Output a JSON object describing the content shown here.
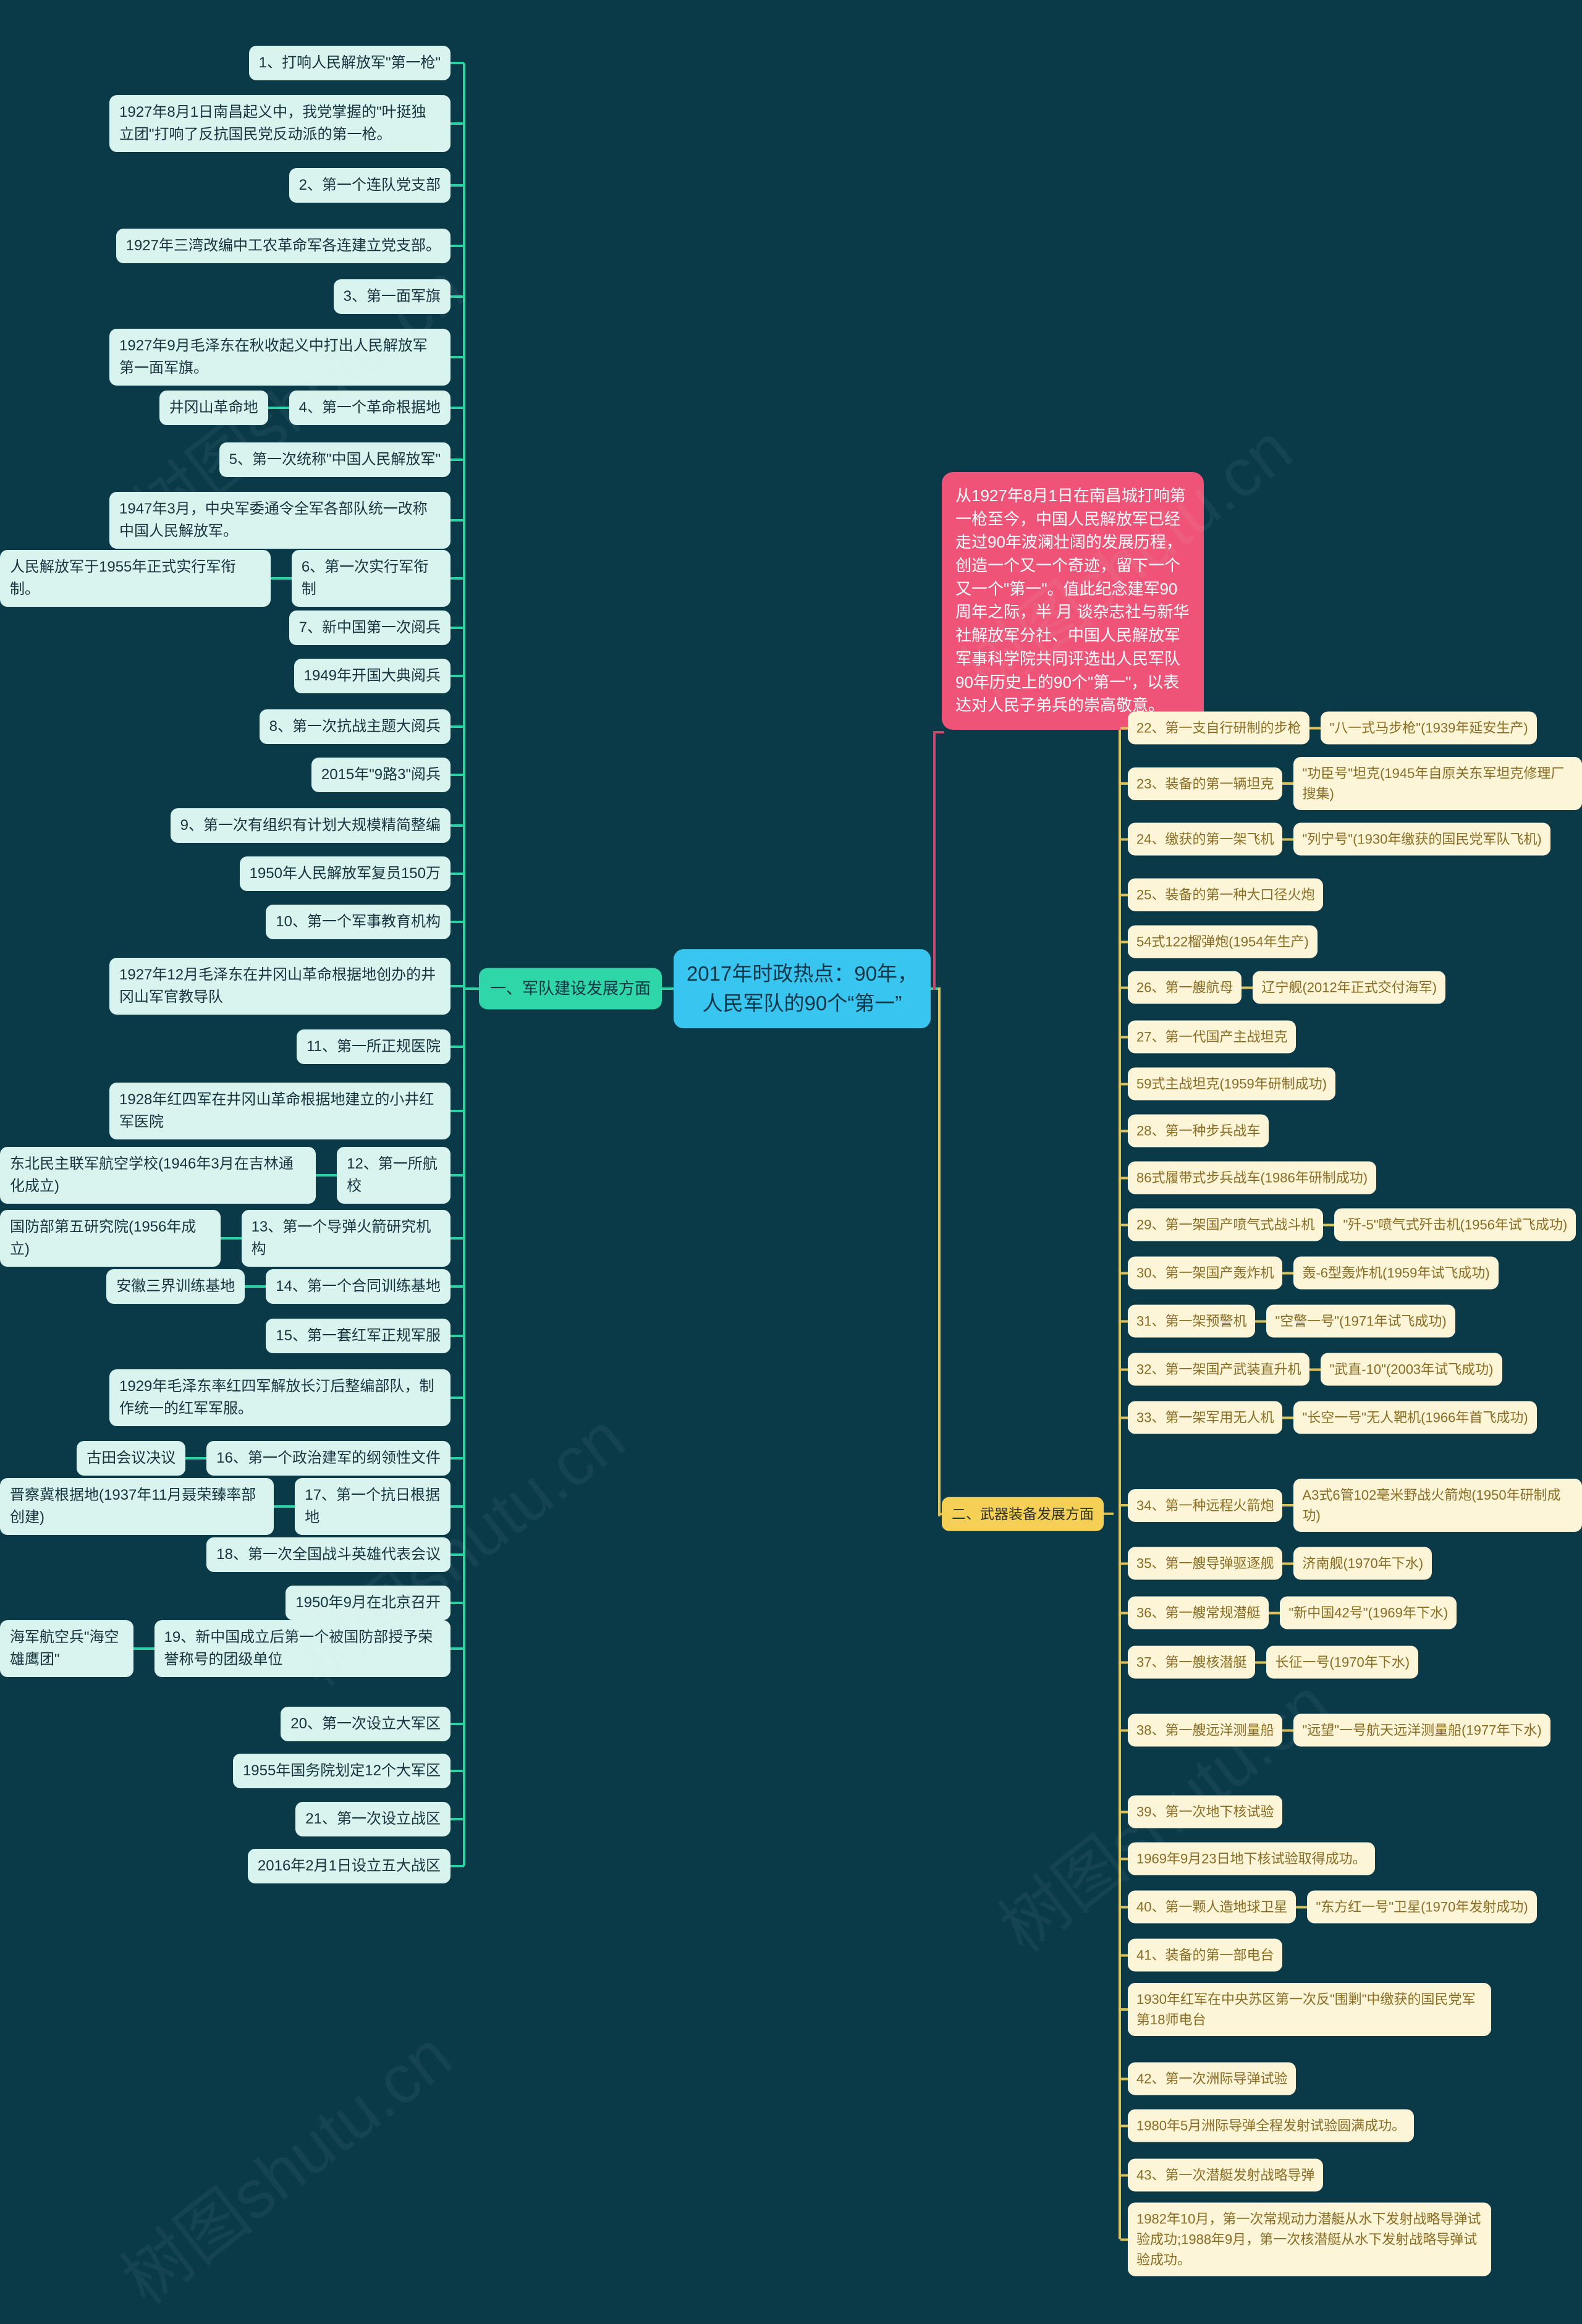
{
  "watermark": "树图shutu.cn",
  "center": {
    "title": "2017年时政热点：90年，人民军队的90个“第一”"
  },
  "intro": {
    "text": "从1927年8月1日在南昌城打响第一枪至今，中国人民解放军已经走过90年波澜壮阔的发展历程，创造一个又一个奇迹，留下一个又一个\"第一\"。值此纪念建军90周年之际，半 月 谈杂志社与新华社解放军分社、中国人民解放军军事科学院共同评选出人民军队90年历史上的90个\"第一\"，以表达对人民子弟兵的崇高敬意。"
  },
  "branch1": {
    "label": "一、军队建设发展方面",
    "items": [
      {
        "label": "1、打响人民解放军\"第一枪\"",
        "desc": "1927年8月1日南昌起义中，我党掌握的\"叶挺独立团\"打响了反抗国民党反动派的第一枪。"
      },
      {
        "label": "2、第一个连队党支部",
        "desc": "1927年三湾改编中工农革命军各连建立党支部。"
      },
      {
        "label": "3、第一面军旗",
        "desc": "1927年9月毛泽东在秋收起义中打出人民解放军第一面军旗。"
      },
      {
        "label": "4、第一个革命根据地",
        "side": "井冈山革命地"
      },
      {
        "label": "5、第一次统称\"中国人民解放军\"",
        "desc": "1947年3月，中央军委通令全军各部队统一改称中国人民解放军。"
      },
      {
        "label": "6、第一次实行军衔制",
        "side": "人民解放军于1955年正式实行军衔制。"
      },
      {
        "label": "7、新中国第一次阅兵",
        "desc": "1949年开国大典阅兵"
      },
      {
        "label": "8、第一次抗战主题大阅兵",
        "desc": "2015年\"9路3\"阅兵"
      },
      {
        "label": "9、第一次有组织有计划大规模精简整编",
        "desc": "1950年人民解放军复员150万"
      },
      {
        "label": "10、第一个军事教育机构",
        "desc": "1927年12月毛泽东在井冈山革命根据地创办的井冈山军官教导队"
      },
      {
        "label": "11、第一所正规医院",
        "desc": "1928年红四军在井冈山革命根据地建立的小井红军医院"
      },
      {
        "label": "12、第一所航校",
        "side": "东北民主联军航空学校(1946年3月在吉林通化成立)"
      },
      {
        "label": "13、第一个导弹火箭研究机构",
        "side": "国防部第五研究院(1956年成立)"
      },
      {
        "label": "14、第一个合同训练基地",
        "side": "安徽三界训练基地"
      },
      {
        "label": "15、第一套红军正规军服",
        "desc": "1929年毛泽东率红四军解放长汀后整编部队，制作统一的红军军服。"
      },
      {
        "label": "16、第一个政治建军的纲领性文件",
        "side": "古田会议决议"
      },
      {
        "label": "17、第一个抗日根据地",
        "side": "晋察冀根据地(1937年11月聂荣臻率部创建)"
      },
      {
        "label": "18、第一次全国战斗英雄代表会议",
        "desc": "1950年9月在北京召开"
      },
      {
        "label": "19、新中国成立后第一个被国防部授予荣誉称号的团级单位",
        "side": "海军航空兵\"海空雄鹰团\""
      },
      {
        "label": "20、第一次设立大军区",
        "desc": "1955年国务院划定12个大军区"
      },
      {
        "label": "21、第一次设立战区",
        "desc": "2016年2月1日设立五大战区"
      }
    ]
  },
  "branch2": {
    "label": "二、武器装备发展方面",
    "items": [
      {
        "label": "22、第一支自行研制的步枪",
        "sub": "\"八一式马步枪\"(1939年延安生产)"
      },
      {
        "label": "23、装备的第一辆坦克",
        "sub": "\"功臣号\"坦克(1945年自原关东军坦克修理厂搜集)"
      },
      {
        "label": "24、缴获的第一架飞机",
        "sub": "\"列宁号\"(1930年缴获的国民党军队飞机)"
      },
      {
        "label": "25、装备的第一种大口径火炮",
        "desc": "54式122榴弹炮(1954年生产)"
      },
      {
        "label": "26、第一艘航母",
        "sub": "辽宁舰(2012年正式交付海军)"
      },
      {
        "label": "27、第一代国产主战坦克",
        "desc": "59式主战坦克(1959年研制成功)"
      },
      {
        "label": "28、第一种步兵战车",
        "desc": "86式履带式步兵战车(1986年研制成功)"
      },
      {
        "label": "29、第一架国产喷气式战斗机",
        "sub": "\"歼-5\"喷气式歼击机(1956年试飞成功)"
      },
      {
        "label": "30、第一架国产轰炸机",
        "sub": "轰-6型轰炸机(1959年试飞成功)"
      },
      {
        "label": "31、第一架预警机",
        "sub": "\"空警一号\"(1971年试飞成功)"
      },
      {
        "label": "32、第一架国产武装直升机",
        "sub": "\"武直-10\"(2003年试飞成功)"
      },
      {
        "label": "33、第一架军用无人机",
        "sub": "\"长空一号\"无人靶机(1966年首飞成功)"
      },
      {
        "label": "34、第一种远程火箭炮",
        "sub": "A3式6管102毫米野战火箭炮(1950年研制成功)"
      },
      {
        "label": "35、第一艘导弹驱逐舰",
        "sub": "济南舰(1970年下水)"
      },
      {
        "label": "36、第一艘常规潜艇",
        "sub": "\"新中国42号\"(1969年下水)"
      },
      {
        "label": "37、第一艘核潜艇",
        "sub": "长征一号(1970年下水)"
      },
      {
        "label": "38、第一艘远洋测量船",
        "sub": "\"远望\"一号航天远洋测量船(1977年下水)"
      },
      {
        "label": "39、第一次地下核试验",
        "desc": "1969年9月23日地下核试验取得成功。"
      },
      {
        "label": "40、第一颗人造地球卫星",
        "sub": "\"东方红一号\"卫星(1970年发射成功)"
      },
      {
        "label": "41、装备的第一部电台",
        "desc": "1930年红军在中央苏区第一次反\"围剿\"中缴获的国民党军第18师电台"
      },
      {
        "label": "42、第一次洲际导弹试验",
        "desc": "1980年5月洲际导弹全程发射试验圆满成功。"
      },
      {
        "label": "43、第一次潜艇发射战略导弹",
        "desc": "1982年10月，第一次常规动力潜艇从水下发射战略导弹试验成功;1988年9月，第一次核潜艇从水下发射战略导弹试验成功。"
      }
    ]
  },
  "colors": {
    "background": "#0a3948",
    "left_node_fill": "#d9f3ee",
    "left_node_text": "#17333e",
    "left_line": "#2ed3a4",
    "branch1_fill": "#2fd6a7",
    "center_fill": "#38c6f0",
    "center_text": "#0d3748",
    "intro_fill": "#ef5478",
    "intro_text": "#ffffff",
    "intro_line": "#c9476d",
    "right_node_fill": "#fdf5d8",
    "right_node_text": "#8a6c22",
    "right_line": "#dec259",
    "branch2_fill": "#f6cf55",
    "branch2_text": "#30342a"
  }
}
